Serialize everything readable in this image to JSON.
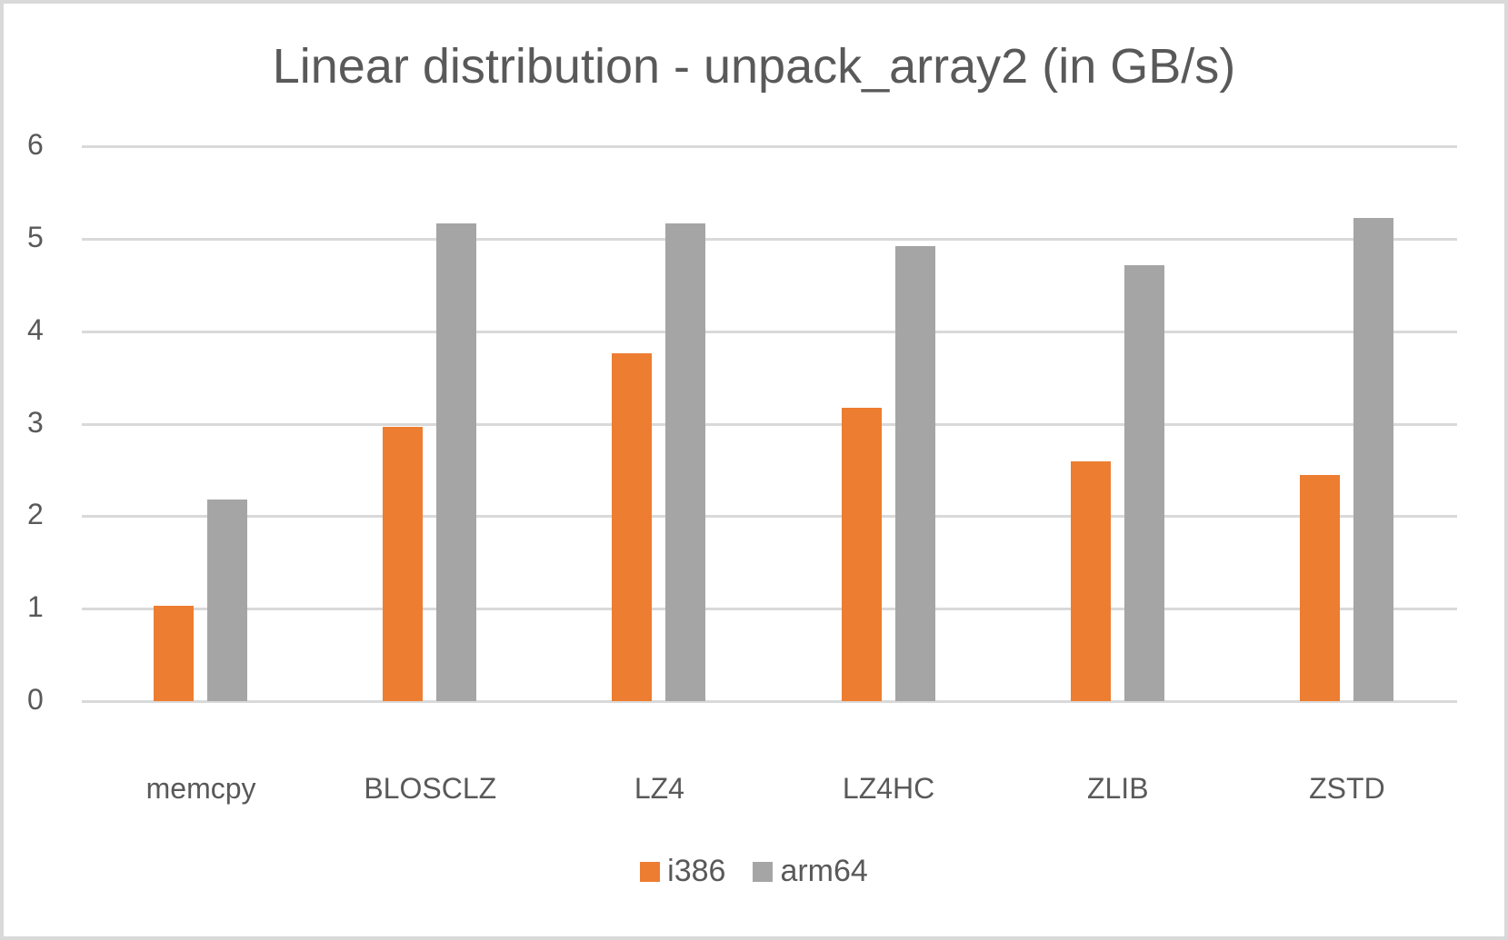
{
  "chart_data": {
    "type": "bar",
    "title": "Linear distribution - unpack_array2 (in GB/s)",
    "xlabel": "",
    "ylabel": "",
    "ylim": [
      0,
      6
    ],
    "yticks": [
      "0",
      "1",
      "2",
      "3",
      "4",
      "5",
      "6"
    ],
    "grid": true,
    "legend_position": "bottom",
    "categories": [
      "memcpy",
      "BLOSCLZ",
      "LZ4",
      "LZ4HC",
      "ZLIB",
      "ZSTD"
    ],
    "series": [
      {
        "name": "i386",
        "color": "#ed7d31",
        "values": [
          1.03,
          2.97,
          3.76,
          3.17,
          2.59,
          2.45
        ]
      },
      {
        "name": "arm64",
        "color": "#a5a5a5",
        "values": [
          2.18,
          5.17,
          5.17,
          4.92,
          4.71,
          5.22
        ]
      }
    ]
  }
}
